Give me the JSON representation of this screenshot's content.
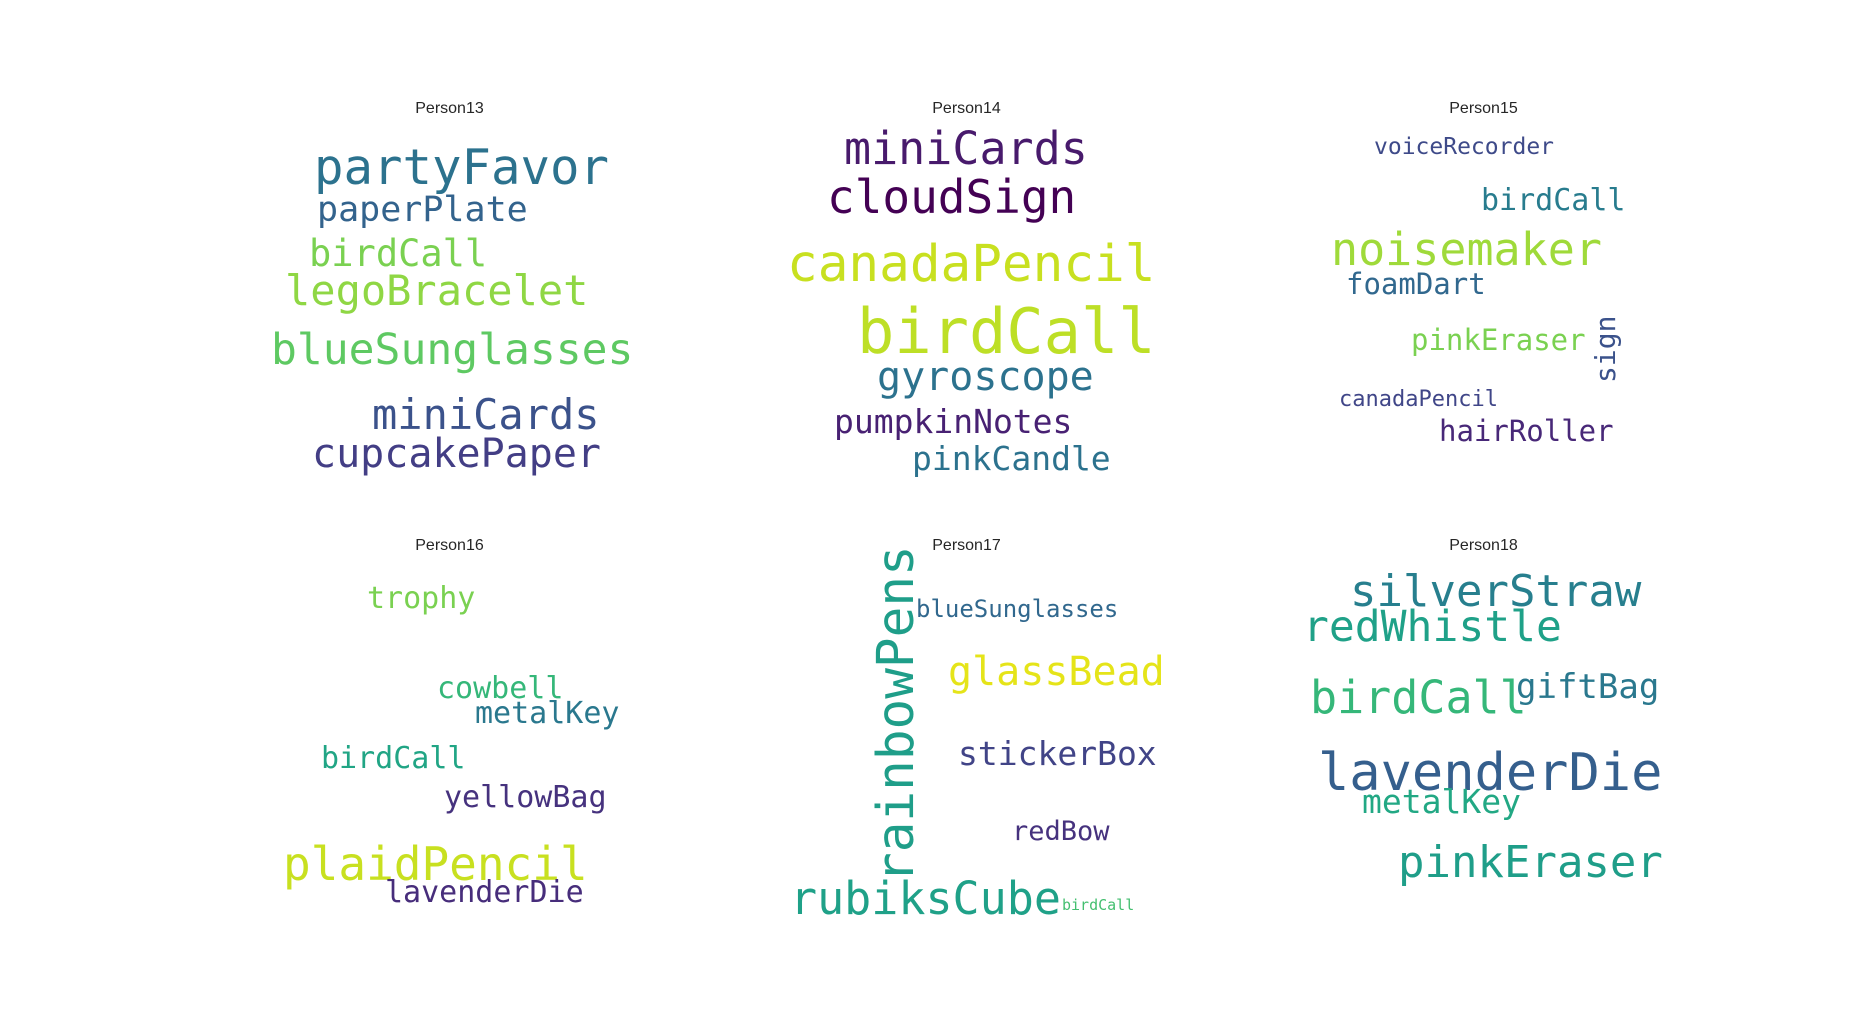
{
  "clouds": [
    {
      "title": "Person13",
      "words": [
        {
          "text": "partyFavor",
          "color": "#2c728e"
        },
        {
          "text": "paperPlate",
          "color": "#33638d"
        },
        {
          "text": "birdCall",
          "color": "#7ad151"
        },
        {
          "text": "legoBracelet",
          "color": "#8fd744"
        },
        {
          "text": "blueSunglasses",
          "color": "#5ec962"
        },
        {
          "text": "miniCards",
          "color": "#3b528b"
        },
        {
          "text": "cupcakePaper",
          "color": "#433e85"
        }
      ]
    },
    {
      "title": "Person14",
      "words": [
        {
          "text": "miniCards",
          "color": "#481a6c"
        },
        {
          "text": "cloudSign",
          "color": "#440154"
        },
        {
          "text": "canadaPencil",
          "color": "#c8e020"
        },
        {
          "text": "birdCall",
          "color": "#bddf26"
        },
        {
          "text": "gyroscope",
          "color": "#2c728e"
        },
        {
          "text": "pumpkinNotes",
          "color": "#482173"
        },
        {
          "text": "pinkCandle",
          "color": "#2c728e"
        }
      ]
    },
    {
      "title": "Person15",
      "words": [
        {
          "text": "voiceRecorder",
          "color": "#3e4a89"
        },
        {
          "text": "birdCall",
          "color": "#287c8e"
        },
        {
          "text": "noisemaker",
          "color": "#9fda3a"
        },
        {
          "text": "foamDart",
          "color": "#31688e"
        },
        {
          "text": "pinkEraser",
          "color": "#7ad151"
        },
        {
          "text": "sign",
          "color": "#3b528b"
        },
        {
          "text": "canadaPencil",
          "color": "#404688"
        },
        {
          "text": "hairRoller",
          "color": "#482878"
        }
      ]
    },
    {
      "title": "Person16",
      "words": [
        {
          "text": "trophy",
          "color": "#7ad151"
        },
        {
          "text": "cowbell",
          "color": "#35b779"
        },
        {
          "text": "metalKey",
          "color": "#2a788e"
        },
        {
          "text": "birdCall",
          "color": "#21a585"
        },
        {
          "text": "yellowBag",
          "color": "#46327e"
        },
        {
          "text": "plaidPencil",
          "color": "#c8e020"
        },
        {
          "text": "lavenderDie",
          "color": "#472d7b"
        }
      ]
    },
    {
      "title": "Person17",
      "words": [
        {
          "text": "rainbowPens",
          "color": "#1f9e89"
        },
        {
          "text": "blueSunglasses",
          "color": "#31688e"
        },
        {
          "text": "glassBead",
          "color": "#e5e419"
        },
        {
          "text": "stickerBox",
          "color": "#414487"
        },
        {
          "text": "redBow",
          "color": "#46327e"
        },
        {
          "text": "rubiksCube",
          "color": "#1fa188"
        },
        {
          "text": "birdCall",
          "color": "#44bf70"
        }
      ]
    },
    {
      "title": "Person18",
      "words": [
        {
          "text": "silverStraw",
          "color": "#277f8e"
        },
        {
          "text": "redWhistle",
          "color": "#1fa188"
        },
        {
          "text": "birdCall",
          "color": "#35b779"
        },
        {
          "text": "giftBag",
          "color": "#2a788e"
        },
        {
          "text": "lavenderDie",
          "color": "#355f8d"
        },
        {
          "text": "metalKey",
          "color": "#22a884"
        },
        {
          "text": "pinkEraser",
          "color": "#1f9e89"
        }
      ]
    }
  ]
}
